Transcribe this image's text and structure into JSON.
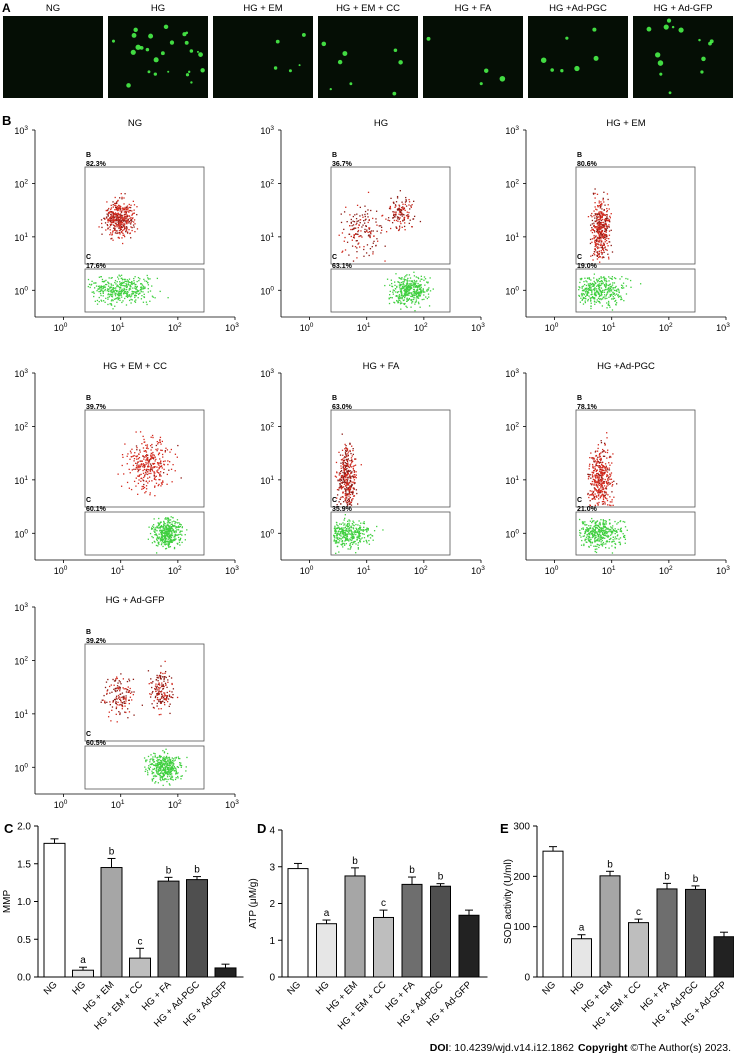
{
  "panel_letters": {
    "a": "A",
    "b": "B",
    "c": "C",
    "d": "D",
    "e": "E"
  },
  "groups": [
    "NG",
    "HG",
    "HG + EM",
    "HG + EM + CC",
    "HG + FA",
    "HG +Ad-PGC",
    "HG + Ad-GFP"
  ],
  "bar_groups": [
    "NG",
    "HG",
    "HG + EM",
    "HG + EM + CC",
    "HG + FA",
    "HG + Ad-PGC",
    "HG + Ad-GFP"
  ],
  "colors": {
    "bar_fills": [
      "#ffffff",
      "#e6e6e6",
      "#a6a6a6",
      "#bebebe",
      "#6e6e6e",
      "#4f4f4f",
      "#222222"
    ],
    "red_population": "#d42a1e",
    "dark_red_population": "#8a1a14",
    "green_population": "#3fcf3f",
    "micrograph_bg": "#050e05",
    "micrograph_cell": "#4dff4d"
  },
  "micrographs": {
    "cell_counts": [
      0,
      26,
      5,
      8,
      4,
      7,
      14
    ]
  },
  "flow": {
    "y_ticks": [
      "10",
      "10",
      "10",
      "10"
    ],
    "y_exps": [
      "3",
      "2",
      "1",
      "0"
    ],
    "x_ticks": [
      "10",
      "10",
      "10",
      "10"
    ],
    "x_exps": [
      "0",
      "1",
      "2",
      "3"
    ],
    "gate_b_label": "B",
    "gate_c_label": "C",
    "plots": [
      {
        "title": "NG",
        "b": "82.3%",
        "c": "17.6%"
      },
      {
        "title": "HG",
        "b": "36.7%",
        "c": "63.1%"
      },
      {
        "title": "HG + EM",
        "b": "80.6%",
        "c": "19.0%"
      },
      {
        "title": "HG + EM + CC",
        "b": "39.7%",
        "c": "60.1%"
      },
      {
        "title": "HG + FA",
        "b": "63.0%",
        "c": "35.9%"
      },
      {
        "title": "HG +Ad-PGC",
        "b": "78.1%",
        "c": "21.0%"
      },
      {
        "title": "HG + Ad-GFP",
        "b": "39.2%",
        "c": "60.5%"
      }
    ]
  },
  "chart_data": [
    {
      "type": "bar",
      "panel": "C",
      "ylabel": "MMP",
      "xlabel": "",
      "ylim": [
        0,
        2.0
      ],
      "yticks": [
        "0.0",
        "0.5",
        "1.0",
        "1.5",
        "2.0"
      ],
      "ytick_values": [
        0,
        0.5,
        1.0,
        1.5,
        2.0
      ],
      "categories": [
        "NG",
        "HG",
        "HG + EM",
        "HG + EM + CC",
        "HG + FA",
        "HG + Ad-PGC",
        "HG + Ad-GFP"
      ],
      "values": [
        1.77,
        0.09,
        1.45,
        0.25,
        1.27,
        1.29,
        0.12
      ],
      "errors": [
        0.06,
        0.04,
        0.12,
        0.13,
        0.05,
        0.04,
        0.05
      ],
      "annotations": [
        "",
        "a",
        "b",
        "c",
        "b",
        "b",
        ""
      ]
    },
    {
      "type": "bar",
      "panel": "D",
      "ylabel": "ATP (μM/g)",
      "xlabel": "",
      "ylim": [
        0,
        4
      ],
      "yticks": [
        "0",
        "1",
        "2",
        "3",
        "4"
      ],
      "ytick_values": [
        0,
        1,
        2,
        3,
        4
      ],
      "categories": [
        "NG",
        "HG",
        "HG + EM",
        "HG + EM + CC",
        "HG + FA",
        "HG + Ad-PGC",
        "HG + Ad-GFP"
      ],
      "values": [
        2.95,
        1.45,
        2.75,
        1.62,
        2.52,
        2.47,
        1.68
      ],
      "errors": [
        0.14,
        0.1,
        0.22,
        0.2,
        0.2,
        0.07,
        0.14
      ],
      "annotations": [
        "",
        "a",
        "b",
        "c",
        "b",
        "b",
        ""
      ]
    },
    {
      "type": "bar",
      "panel": "E",
      "ylabel": "SOD activity (U/ml)",
      "xlabel": "",
      "ylim": [
        0,
        300
      ],
      "yticks": [
        "0",
        "100",
        "200",
        "300"
      ],
      "ytick_values": [
        0,
        100,
        200,
        300
      ],
      "categories": [
        "NG",
        "HG",
        "HG + EM",
        "HG + EM + CC",
        "HG + FA",
        "HG + Ad-PGC",
        "HG + Ad-GFP"
      ],
      "values": [
        250,
        76,
        201,
        108,
        175,
        174,
        80
      ],
      "errors": [
        9,
        8,
        9,
        7,
        11,
        7,
        9
      ],
      "annotations": [
        "",
        "a",
        "b",
        "c",
        "b",
        "b",
        ""
      ]
    }
  ],
  "footer": {
    "doi_label": "DOI",
    "doi_value": ": 10.4239/wjd.v14.i12.1862",
    "copyright_label": "Copyright",
    "copyright_value": " ©The Author(s) 2023."
  }
}
